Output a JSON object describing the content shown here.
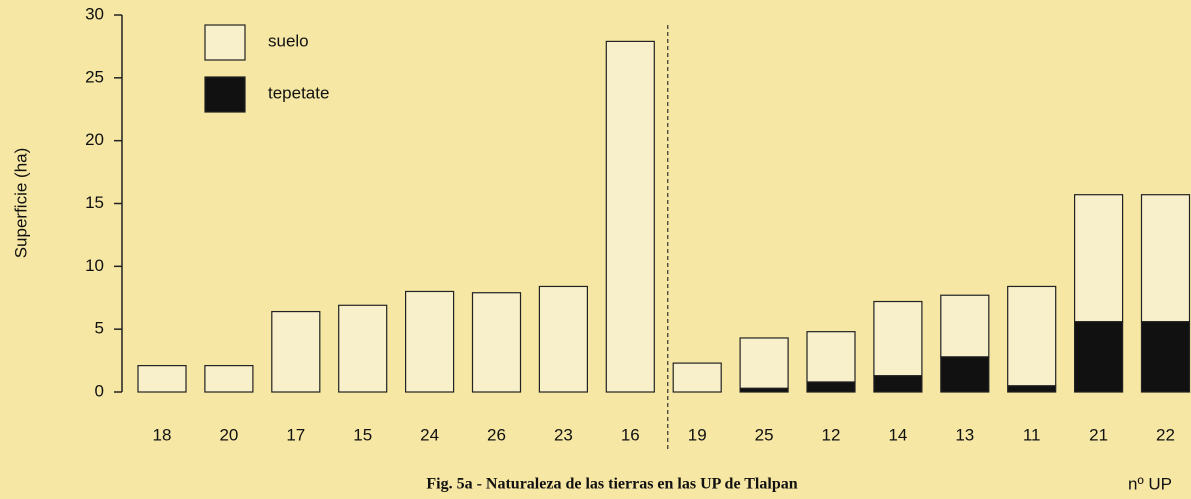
{
  "chart_data": {
    "type": "bar",
    "stacked": true,
    "caption": "Fig. 5a - Naturaleza de las tierras en las UP de Tlalpan",
    "x_label": "nº UP",
    "y_label": "Superficie (ha)",
    "categories": [
      "18",
      "20",
      "17",
      "15",
      "24",
      "26",
      "23",
      "16",
      "19",
      "25",
      "12",
      "14",
      "13",
      "11",
      "21",
      "22"
    ],
    "series": [
      {
        "name": "tepetate",
        "color": "#111111",
        "values": [
          0,
          0,
          0,
          0,
          0,
          0,
          0,
          0,
          0,
          0.3,
          0.8,
          1.3,
          2.8,
          0.5,
          5.6,
          5.6
        ]
      },
      {
        "name": "suelo",
        "color": "#f8efcb",
        "values": [
          2.1,
          2.1,
          6.4,
          6.9,
          8.0,
          7.9,
          8.4,
          27.9,
          2.3,
          4.0,
          4.0,
          5.9,
          4.9,
          7.9,
          10.1,
          10.1
        ]
      }
    ],
    "ylim": [
      0,
      30
    ],
    "yticks": [
      0,
      5,
      10,
      15,
      20,
      25,
      30
    ],
    "legend": "top-left"
  }
}
